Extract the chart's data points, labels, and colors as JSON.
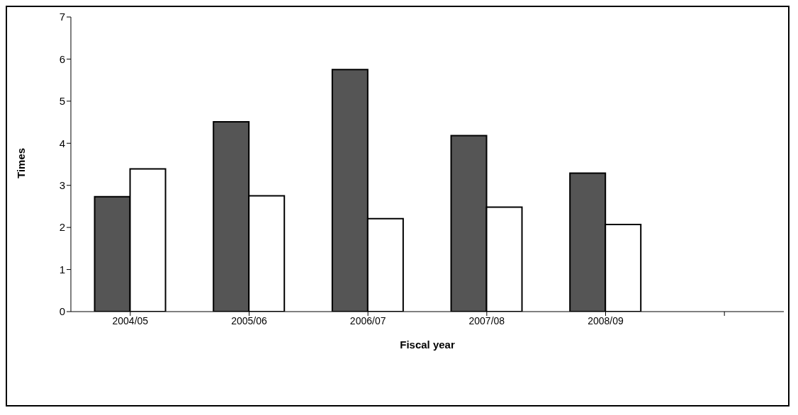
{
  "chart_data": {
    "type": "bar",
    "xlabel": "Fiscal year",
    "ylabel": "Times",
    "categories": [
      "2004/05",
      "2005/06",
      "2006/07",
      "2007/08",
      "2008/09",
      null
    ],
    "series": [
      {
        "color": "#555555",
        "values": [
          2.73,
          4.51,
          5.75,
          4.18,
          3.29,
          null
        ]
      },
      {
        "color": "#ffffff",
        "values": [
          3.39,
          2.75,
          2.21,
          2.48,
          2.07,
          null
        ]
      }
    ],
    "ylim": [
      0,
      7
    ],
    "yticks": [
      0,
      1,
      2,
      3,
      4,
      5,
      6,
      7
    ],
    "grid": false,
    "legend": false
  }
}
